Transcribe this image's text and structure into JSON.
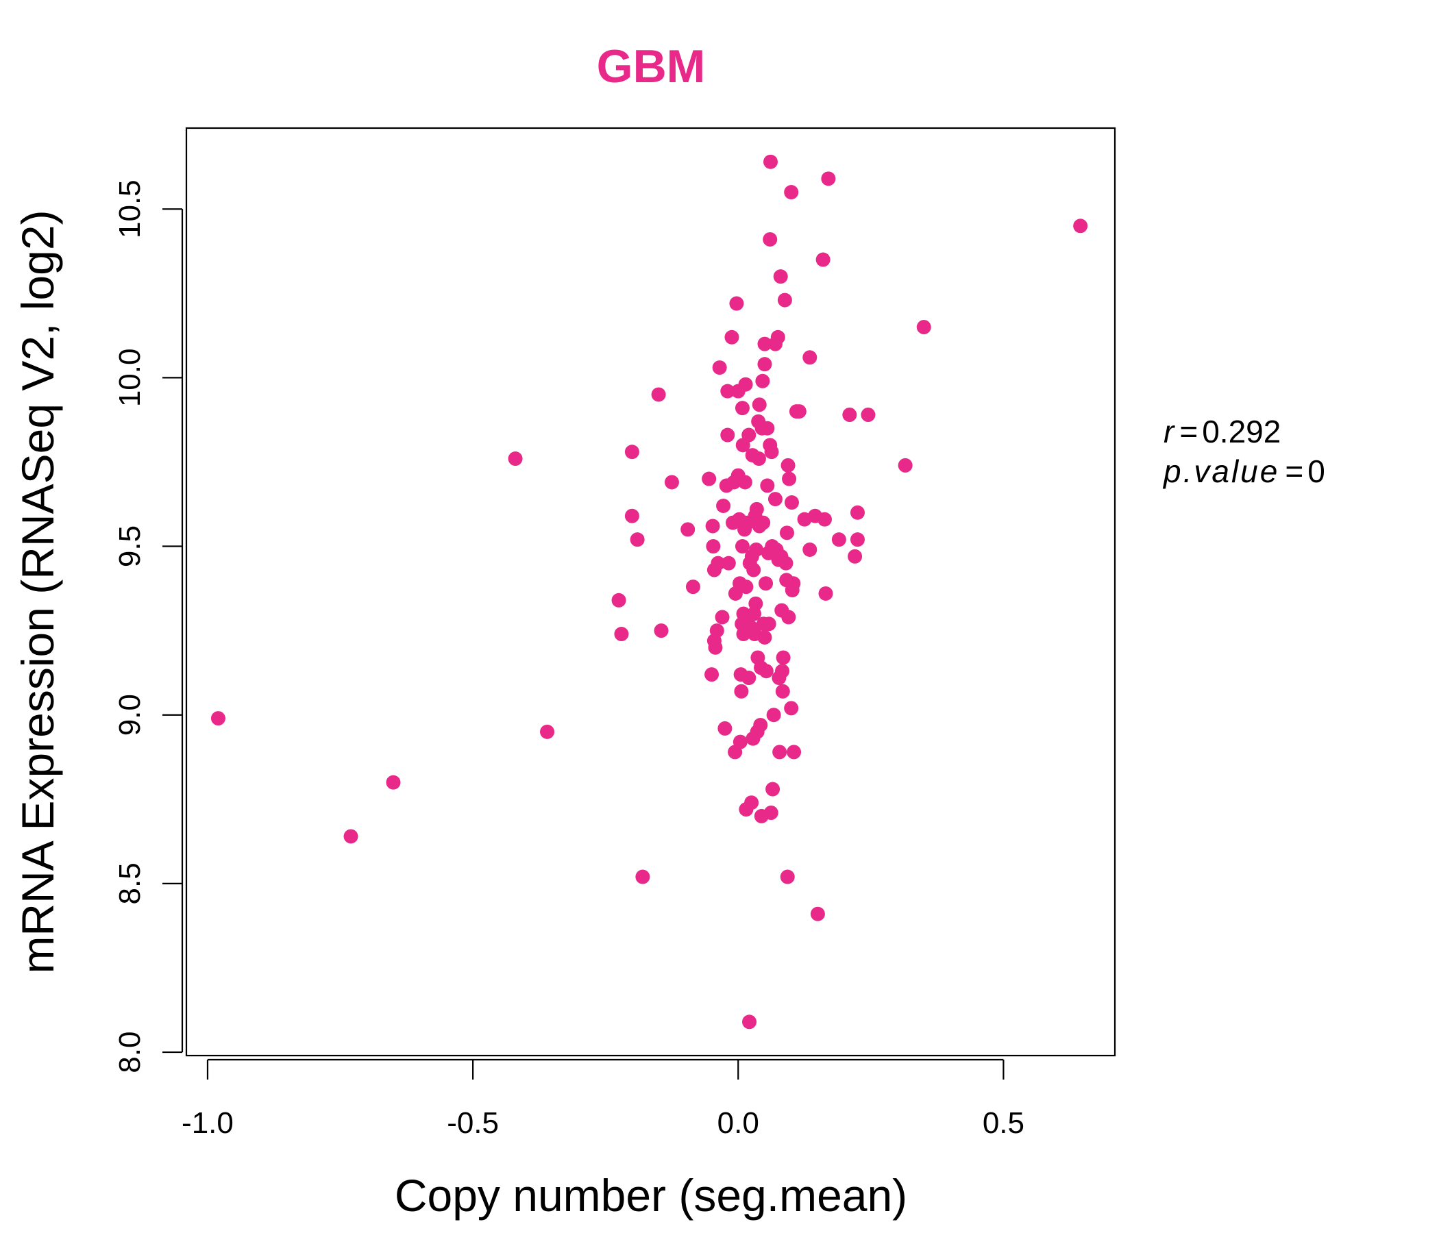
{
  "chart_data": {
    "type": "scatter",
    "title": "GBM",
    "xlabel": "Copy number (seg.mean)",
    "ylabel": "mRNA Expression (RNASeq V2, log2)",
    "xlim": [
      -1.04,
      0.71
    ],
    "ylim": [
      7.99,
      10.74
    ],
    "xticks": [
      -1.0,
      -0.5,
      0.0,
      0.5
    ],
    "xtick_labels": [
      "-1.0",
      "-0.5",
      "0.0",
      "0.5"
    ],
    "yticks": [
      8.0,
      8.5,
      9.0,
      9.5,
      10.0,
      10.5
    ],
    "ytick_labels": [
      "8.0",
      "8.5",
      "9.0",
      "9.5",
      "10.0",
      "10.5"
    ],
    "grid": false,
    "color": "#E8298A",
    "stats": {
      "r_label": "r",
      "r_value": "0.292",
      "p_label": "p.value",
      "p_value": "0",
      "eq": "="
    },
    "points": [
      [
        -0.98,
        8.99
      ],
      [
        -0.73,
        8.64
      ],
      [
        -0.65,
        8.8
      ],
      [
        -0.42,
        9.76
      ],
      [
        -0.36,
        8.95
      ],
      [
        -0.225,
        9.34
      ],
      [
        -0.22,
        9.24
      ],
      [
        -0.2,
        9.78
      ],
      [
        -0.2,
        9.59
      ],
      [
        -0.19,
        9.52
      ],
      [
        -0.18,
        8.52
      ],
      [
        -0.15,
        9.95
      ],
      [
        -0.145,
        9.25
      ],
      [
        -0.125,
        9.69
      ],
      [
        -0.095,
        9.55
      ],
      [
        -0.085,
        9.38
      ],
      [
        -0.055,
        9.7
      ],
      [
        -0.05,
        9.12
      ],
      [
        -0.048,
        9.56
      ],
      [
        -0.047,
        9.5
      ],
      [
        -0.045,
        9.43
      ],
      [
        -0.045,
        9.22
      ],
      [
        -0.043,
        9.2
      ],
      [
        -0.04,
        9.25
      ],
      [
        -0.038,
        9.45
      ],
      [
        -0.035,
        10.03
      ],
      [
        -0.03,
        9.29
      ],
      [
        -0.028,
        9.62
      ],
      [
        -0.025,
        8.96
      ],
      [
        -0.022,
        9.68
      ],
      [
        -0.02,
        9.83
      ],
      [
        -0.02,
        9.96
      ],
      [
        -0.018,
        9.45
      ],
      [
        -0.012,
        10.12
      ],
      [
        -0.01,
        9.57
      ],
      [
        -0.008,
        9.69
      ],
      [
        -0.006,
        8.89
      ],
      [
        -0.005,
        9.36
      ],
      [
        -0.003,
        10.22
      ],
      [
        0.0,
        9.96
      ],
      [
        0.0,
        9.71
      ],
      [
        0.002,
        9.58
      ],
      [
        0.003,
        9.39
      ],
      [
        0.004,
        8.92
      ],
      [
        0.005,
        9.12
      ],
      [
        0.006,
        9.07
      ],
      [
        0.007,
        9.27
      ],
      [
        0.008,
        9.91
      ],
      [
        0.008,
        9.5
      ],
      [
        0.009,
        9.8
      ],
      [
        0.01,
        9.3
      ],
      [
        0.01,
        9.24
      ],
      [
        0.012,
        9.55
      ],
      [
        0.013,
        9.69
      ],
      [
        0.014,
        9.98
      ],
      [
        0.015,
        8.72
      ],
      [
        0.015,
        9.38
      ],
      [
        0.017,
        9.28
      ],
      [
        0.018,
        9.57
      ],
      [
        0.02,
        9.83
      ],
      [
        0.02,
        9.11
      ],
      [
        0.021,
        8.09
      ],
      [
        0.022,
        9.45
      ],
      [
        0.024,
        9.26
      ],
      [
        0.025,
        8.74
      ],
      [
        0.026,
        9.47
      ],
      [
        0.027,
        9.77
      ],
      [
        0.028,
        8.93
      ],
      [
        0.029,
        9.43
      ],
      [
        0.03,
        9.3
      ],
      [
        0.031,
        9.24
      ],
      [
        0.032,
        9.59
      ],
      [
        0.033,
        9.33
      ],
      [
        0.034,
        9.49
      ],
      [
        0.035,
        9.61
      ],
      [
        0.036,
        8.95
      ],
      [
        0.037,
        9.17
      ],
      [
        0.038,
        9.87
      ],
      [
        0.039,
        9.76
      ],
      [
        0.04,
        9.92
      ],
      [
        0.04,
        9.56
      ],
      [
        0.042,
        8.97
      ],
      [
        0.043,
        9.14
      ],
      [
        0.044,
        8.7
      ],
      [
        0.045,
        9.85
      ],
      [
        0.046,
        9.99
      ],
      [
        0.047,
        9.57
      ],
      [
        0.048,
        9.27
      ],
      [
        0.05,
        10.1
      ],
      [
        0.05,
        10.04
      ],
      [
        0.05,
        9.23
      ],
      [
        0.052,
        9.39
      ],
      [
        0.053,
        9.13
      ],
      [
        0.055,
        9.85
      ],
      [
        0.055,
        9.68
      ],
      [
        0.057,
        9.48
      ],
      [
        0.058,
        9.27
      ],
      [
        0.06,
        9.8
      ],
      [
        0.06,
        10.41
      ],
      [
        0.061,
        10.64
      ],
      [
        0.062,
        8.71
      ],
      [
        0.063,
        9.78
      ],
      [
        0.064,
        9.5
      ],
      [
        0.065,
        8.78
      ],
      [
        0.067,
        9.0
      ],
      [
        0.07,
        10.1
      ],
      [
        0.07,
        9.64
      ],
      [
        0.072,
        9.49
      ],
      [
        0.075,
        10.12
      ],
      [
        0.076,
        9.46
      ],
      [
        0.077,
        9.11
      ],
      [
        0.078,
        8.89
      ],
      [
        0.08,
        10.3
      ],
      [
        0.081,
        9.47
      ],
      [
        0.082,
        9.31
      ],
      [
        0.083,
        9.13
      ],
      [
        0.084,
        9.07
      ],
      [
        0.085,
        9.17
      ],
      [
        0.088,
        10.23
      ],
      [
        0.09,
        9.45
      ],
      [
        0.091,
        9.4
      ],
      [
        0.092,
        9.54
      ],
      [
        0.093,
        8.52
      ],
      [
        0.094,
        9.74
      ],
      [
        0.095,
        9.29
      ],
      [
        0.096,
        9.7
      ],
      [
        0.1,
        10.55
      ],
      [
        0.1,
        9.02
      ],
      [
        0.101,
        9.63
      ],
      [
        0.102,
        9.37
      ],
      [
        0.104,
        9.39
      ],
      [
        0.105,
        8.89
      ],
      [
        0.11,
        9.9
      ],
      [
        0.115,
        9.9
      ],
      [
        0.125,
        9.58
      ],
      [
        0.135,
        10.06
      ],
      [
        0.135,
        9.49
      ],
      [
        0.145,
        9.59
      ],
      [
        0.15,
        8.41
      ],
      [
        0.16,
        10.35
      ],
      [
        0.163,
        9.58
      ],
      [
        0.165,
        9.36
      ],
      [
        0.17,
        10.59
      ],
      [
        0.19,
        9.52
      ],
      [
        0.21,
        9.89
      ],
      [
        0.22,
        9.47
      ],
      [
        0.225,
        9.6
      ],
      [
        0.225,
        9.52
      ],
      [
        0.245,
        9.89
      ],
      [
        0.315,
        9.74
      ],
      [
        0.35,
        10.15
      ],
      [
        0.645,
        10.45
      ]
    ]
  }
}
